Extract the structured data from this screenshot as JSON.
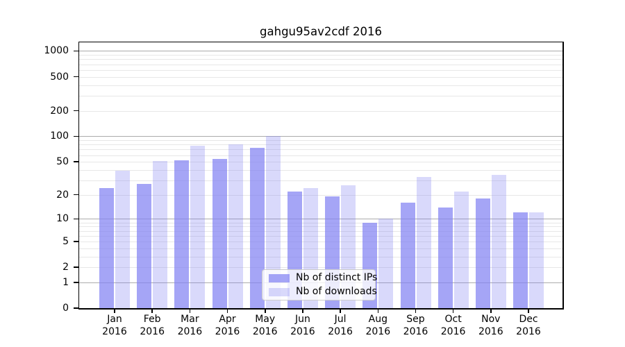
{
  "title": "gahgu95av2cdf 2016",
  "legend": {
    "items": [
      {
        "label": "Nb of distinct IPs",
        "series_key": "distinct_ips"
      },
      {
        "label": "Nb of downloads",
        "series_key": "downloads"
      }
    ]
  },
  "colors": {
    "bar_rgb": "130,130,242",
    "ip_alpha": 0.72,
    "dl_alpha": 0.3,
    "major_grid": "#ababab",
    "minor_grid": "#e7e7e7",
    "spine": "#000000",
    "legend_bg": "rgba(255,255,255,0.8)",
    "legend_border": "#cccccc"
  },
  "chart_data": {
    "type": "bar",
    "title": "gahgu95av2cdf 2016",
    "categories": [
      "Jan 2016",
      "Feb 2016",
      "Mar 2016",
      "Apr 2016",
      "May 2016",
      "Jun 2016",
      "Jul 2016",
      "Aug 2016",
      "Sep 2016",
      "Oct 2016",
      "Nov 2016",
      "Dec 2016"
    ],
    "series": [
      {
        "name": "Nb of distinct IPs",
        "values": [
          24,
          27,
          52,
          54,
          73,
          22,
          19,
          9,
          16,
          14,
          18,
          12
        ]
      },
      {
        "name": "Nb of downloads",
        "values": [
          39,
          51,
          78,
          80,
          101,
          24,
          26,
          10,
          33,
          22,
          35,
          12
        ]
      }
    ],
    "xlabel": "",
    "ylabel": "",
    "yscale": "log1p",
    "yticks": [
      0,
      1,
      2,
      5,
      10,
      20,
      50,
      100,
      200,
      500,
      1000
    ],
    "ylim": [
      0,
      1260
    ],
    "grid": true,
    "grid_minor_bases": [
      1,
      10,
      100
    ],
    "legend_position": "lower center inside"
  }
}
